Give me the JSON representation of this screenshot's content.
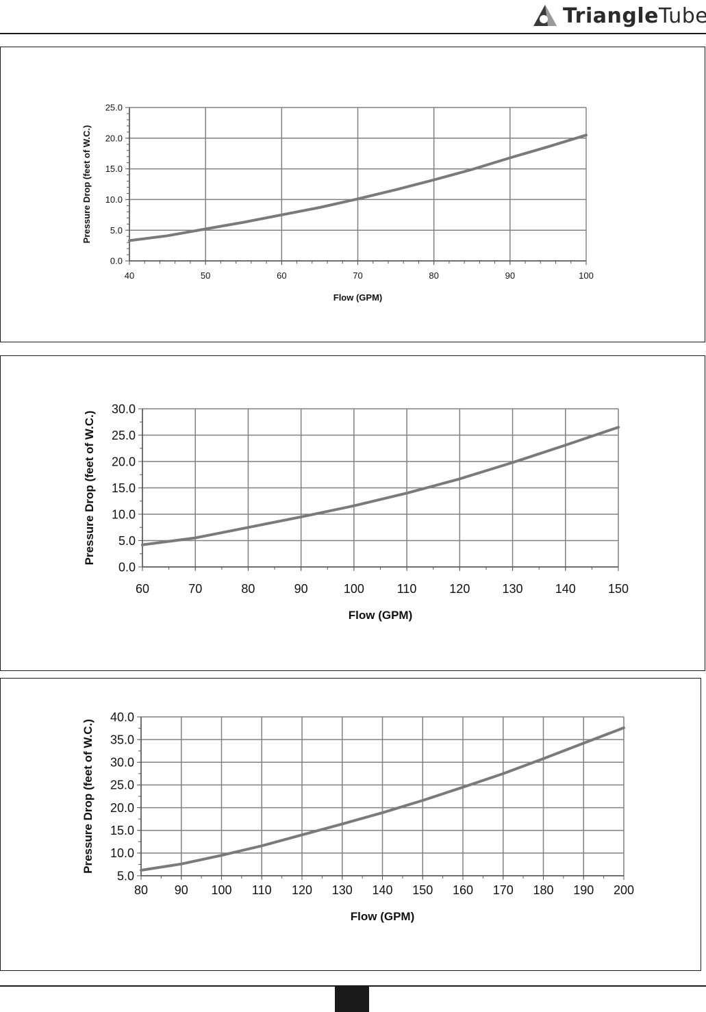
{
  "header": {
    "brand": {
      "name_bold": "Triangle",
      "name_light": "Tube",
      "icon": "triangle-tube-logo-icon",
      "color": "#2b2b2b",
      "accent_color": "#8a8a8a"
    }
  },
  "chart_data": [
    {
      "type": "line",
      "title": "",
      "xlabel": "Flow (GPM)",
      "ylabel": "Pressure Drop (feet of W.C.)",
      "xlim": [
        40,
        100
      ],
      "ylim": [
        0,
        25
      ],
      "x_ticks": [
        40,
        50,
        60,
        70,
        80,
        90,
        100
      ],
      "y_ticks": [
        0,
        5,
        10,
        15,
        20,
        25
      ],
      "x_tick_labels": [
        "40",
        "50",
        "60",
        "70",
        "80",
        "90",
        "100"
      ],
      "y_tick_labels": [
        "0.0",
        "5.0",
        "10.0",
        "15.0",
        "20.0",
        "25.0"
      ],
      "grid": true,
      "line_color": "#7a7a7a",
      "series": [
        {
          "x": [
            40,
            45,
            50,
            55,
            60,
            65,
            70,
            75,
            80,
            85,
            90,
            95,
            100
          ],
          "y": [
            3.3,
            4.1,
            5.2,
            6.3,
            7.5,
            8.7,
            10.1,
            11.6,
            13.2,
            14.9,
            16.8,
            18.6,
            20.5
          ]
        }
      ]
    },
    {
      "type": "line",
      "title": "",
      "xlabel": "Flow (GPM)",
      "ylabel": "Pressure Drop (feet of W.C.)",
      "xlim": [
        60,
        150
      ],
      "ylim": [
        0,
        30
      ],
      "x_ticks": [
        60,
        70,
        80,
        90,
        100,
        110,
        120,
        130,
        140,
        150
      ],
      "y_ticks": [
        0,
        5,
        10,
        15,
        20,
        25,
        30
      ],
      "x_tick_labels": [
        "60",
        "70",
        "80",
        "90",
        "100",
        "110",
        "120",
        "130",
        "140",
        "150"
      ],
      "y_tick_labels": [
        "0.0",
        "5.0",
        "10.0",
        "15.0",
        "20.0",
        "25.0",
        "30.0"
      ],
      "grid": true,
      "line_color": "#7a7a7a",
      "series": [
        {
          "x": [
            60,
            70,
            80,
            90,
            100,
            110,
            120,
            130,
            140,
            150
          ],
          "y": [
            4.2,
            5.5,
            7.5,
            9.5,
            11.6,
            14.0,
            16.7,
            19.8,
            23.1,
            26.5
          ]
        }
      ]
    },
    {
      "type": "line",
      "title": "",
      "xlabel": "Flow (GPM)",
      "ylabel": "Pressure Drop (feet of W.C.)",
      "xlim": [
        80,
        200
      ],
      "ylim": [
        5,
        40
      ],
      "x_ticks": [
        80,
        90,
        100,
        110,
        120,
        130,
        140,
        150,
        160,
        170,
        180,
        190,
        200
      ],
      "y_ticks": [
        5,
        10,
        15,
        20,
        25,
        30,
        35,
        40
      ],
      "x_tick_labels": [
        "80",
        "90",
        "100",
        "110",
        "120",
        "130",
        "140",
        "150",
        "160",
        "170",
        "180",
        "190",
        "200"
      ],
      "y_tick_labels": [
        "5.0",
        "10.0",
        "15.0",
        "20.0",
        "25.0",
        "30.0",
        "35.0",
        "40.0"
      ],
      "grid": true,
      "line_color": "#7a7a7a",
      "series": [
        {
          "x": [
            80,
            90,
            100,
            110,
            120,
            130,
            140,
            150,
            160,
            170,
            180,
            190,
            200
          ],
          "y": [
            6.2,
            7.6,
            9.5,
            11.6,
            14.0,
            16.4,
            18.9,
            21.6,
            24.5,
            27.5,
            30.8,
            34.2,
            37.6
          ]
        }
      ]
    }
  ]
}
